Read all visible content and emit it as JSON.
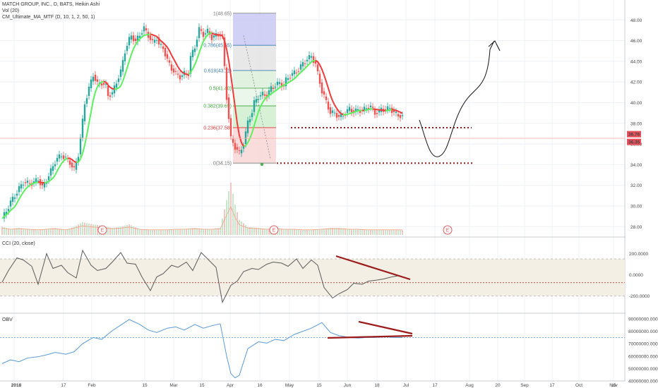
{
  "legend": {
    "symbol_line": "MATCH GROUP, INC., D, BATS, Heikin Ashi",
    "vol_line": "Vol (20)",
    "ma_line": "CM_Ultimate_MA_MTF (D, 10, 1, 2, 50, 1)"
  },
  "price_tags": {
    "upper": "36.76",
    "lower": "36.35"
  },
  "fib_labels": [
    "1(48.65)",
    "0.786(45.55)",
    "0.618(43.11)",
    "0.5(41.40)",
    "0.382(39.69)",
    "0.236(37.58)",
    "0(34.15)"
  ],
  "cci_title": "CCI (20, close)",
  "obv_title": "OBV",
  "earnings_marker": "E",
  "colors": {
    "up": "#26a69a",
    "down": "#ef5350",
    "ma_up": "#5cf05c",
    "ma_down": "#ef3b3b",
    "indicator": "#5a5a5a",
    "obv_line": "#5b9bd5",
    "annotation": "#9b1b1b",
    "tag": "#e8515b"
  },
  "chart_data": [
    {
      "type": "line",
      "title": "MATCH GROUP, INC., D, BATS, Heikin Ashi",
      "chart_style": "heikin-ashi candles with moving average and volume",
      "y_ticks": [
        "48.00",
        "46.00",
        "44.00",
        "42.00",
        "40.00",
        "38.00",
        "36.00",
        "34.00",
        "32.00",
        "30.00",
        "28.00"
      ],
      "ylim": [
        27.0,
        49.7
      ],
      "x_ticks": [
        "2018",
        "17",
        "Feb",
        "15",
        "Mar",
        "15",
        "Apr",
        "16",
        "May",
        "15",
        "Jun",
        "18",
        "Jul",
        "17",
        "Aug",
        "20",
        "Sep",
        "17",
        "Oct",
        "15",
        "Nov"
      ],
      "series": [
        {
          "x": [
            0,
            2,
            4,
            6,
            8,
            10,
            12,
            14,
            15,
            17,
            19,
            21,
            23,
            25,
            26,
            28,
            30,
            32,
            34,
            36,
            38,
            39,
            41,
            43,
            45,
            47,
            49,
            50,
            52,
            54,
            56,
            58,
            60,
            61,
            63,
            65,
            67,
            69,
            71,
            73,
            74,
            76,
            78,
            80,
            82,
            84,
            86,
            88,
            89,
            91,
            93,
            95,
            97,
            99,
            101,
            103,
            104,
            106,
            108,
            110,
            112,
            114,
            116,
            118,
            119,
            121,
            123,
            125,
            127,
            129,
            131,
            133,
            134,
            136,
            138,
            140,
            142,
            144,
            146,
            148,
            149,
            151,
            153,
            155,
            157,
            159,
            161,
            163,
            164,
            166,
            168,
            170,
            172,
            174,
            176,
            178,
            179,
            181,
            183,
            185,
            187,
            189
          ],
          "values": [
            28.8,
            29.5,
            30.4,
            31.0,
            31.7,
            32.3,
            32.2,
            32.2,
            32.3,
            32.6,
            31.8,
            32.5,
            33.4,
            34.3,
            34.6,
            34.9,
            34.6,
            34.2,
            33.5,
            35.0,
            38.2,
            39.9,
            41.4,
            42.7,
            41.8,
            41.9,
            41.6,
            40.7,
            40.9,
            42.0,
            43.0,
            45.0,
            46.1,
            46.5,
            45.9,
            46.6,
            47.2,
            46.5,
            45.8,
            46.3,
            45.6,
            45.3,
            44.1,
            43.3,
            42.8,
            42.5,
            42.8,
            42.8,
            44.4,
            45.4,
            47.1,
            46.6,
            46.9,
            46.3,
            46.5,
            46.6,
            46.3,
            40.5,
            36.5,
            35.7,
            35.1,
            36.0,
            38.1,
            39.1,
            40.0,
            40.6,
            40.8,
            40.7,
            41.4,
            41.7,
            41.9,
            41.6,
            42.2,
            42.6,
            42.9,
            43.2,
            43.8,
            44.2,
            44.5,
            43.7,
            42.8,
            41.1,
            40.1,
            39.0,
            39.0,
            38.6,
            38.8,
            39.2,
            39.4,
            39.1,
            39.3,
            39.2,
            39.5,
            39.6,
            39.0,
            39.1,
            39.4,
            39.3,
            39.5,
            39.0,
            38.8,
            38.6
          ]
        },
        {
          "name": "Vol (20)",
          "x": [
            0,
            4,
            8,
            12,
            17,
            21,
            25,
            30,
            34,
            38,
            43,
            47,
            52,
            56,
            60,
            65,
            69,
            73,
            78,
            82,
            86,
            91,
            95,
            99,
            103,
            106,
            108,
            110,
            112,
            116,
            121,
            125,
            129,
            133,
            138,
            142,
            146,
            151,
            155,
            159,
            164,
            168,
            172,
            176,
            181,
            185,
            189
          ],
          "values": [
            0.7,
            0.5,
            0.6,
            0.5,
            0.4,
            0.5,
            0.6,
            0.4,
            0.7,
            1.1,
            0.9,
            0.8,
            0.6,
            0.7,
            0.9,
            0.5,
            0.4,
            0.4,
            0.4,
            0.5,
            0.5,
            0.6,
            0.5,
            0.5,
            0.6,
            3.0,
            4.5,
            2.6,
            1.3,
            0.7,
            0.6,
            0.5,
            0.6,
            0.5,
            0.5,
            0.4,
            0.4,
            0.5,
            0.6,
            0.6,
            0.5,
            0.5,
            0.4,
            0.4,
            0.4,
            0.4,
            0.4
          ]
        }
      ],
      "fibonacci": {
        "levels": [
          1.0,
          0.786,
          0.618,
          0.5,
          0.382,
          0.236,
          0.0
        ],
        "prices": [
          48.65,
          45.55,
          43.11,
          41.4,
          39.69,
          37.58,
          34.15
        ]
      },
      "horizontal_lines": [
        37.58,
        34.15
      ],
      "last_price": [
        36.76,
        36.35
      ]
    },
    {
      "type": "line",
      "title": "CCI (20, close)",
      "y_ticks": [
        "200.0000",
        "0.0000",
        "-200.0000"
      ],
      "ylim": [
        -320,
        280
      ],
      "bands": [
        -200,
        150
      ],
      "series": [
        {
          "x": [
            0,
            3,
            7,
            10,
            14,
            17,
            21,
            24,
            28,
            31,
            35,
            38,
            42,
            45,
            49,
            52,
            56,
            59,
            63,
            66,
            70,
            73,
            76,
            80,
            83,
            87,
            90,
            94,
            97,
            101,
            104,
            108,
            111,
            114,
            118,
            121,
            125,
            128,
            132,
            135,
            139,
            142,
            146,
            149,
            152,
            156,
            159,
            163,
            166,
            170,
            173,
            177,
            180,
            184,
            187,
            189
          ],
          "values": [
            -70,
            40,
            160,
            140,
            80,
            -90,
            200,
            60,
            90,
            20,
            -30,
            230,
            90,
            40,
            60,
            120,
            210,
            110,
            100,
            -20,
            -150,
            -20,
            10,
            90,
            70,
            120,
            40,
            210,
            150,
            70,
            -260,
            -100,
            -60,
            30,
            60,
            50,
            100,
            120,
            110,
            80,
            150,
            60,
            140,
            90,
            -120,
            -220,
            -180,
            -140,
            -80,
            -90,
            -60,
            -50,
            -40,
            -20,
            -10,
            -20
          ]
        }
      ]
    },
    {
      "type": "line",
      "title": "OBV",
      "y_ticks": [
        "90000000.0000",
        "80000000.0000",
        "70000000.0000",
        "60000000.0000",
        "50000000.0000",
        "40000000.0000"
      ],
      "ylim": [
        39000000,
        92000000
      ],
      "series": [
        {
          "x": [
            0,
            4,
            8,
            12,
            17,
            21,
            25,
            30,
            34,
            38,
            43,
            47,
            52,
            56,
            60,
            65,
            69,
            73,
            78,
            82,
            86,
            91,
            95,
            99,
            103,
            106,
            108,
            110,
            112,
            116,
            121,
            125,
            129,
            133,
            138,
            142,
            146,
            151,
            155,
            159,
            164,
            168,
            172,
            176,
            181,
            185,
            189
          ],
          "values": [
            54000000,
            57000000,
            55500000,
            58500000,
            59500000,
            61000000,
            63000000,
            61500000,
            63500000,
            70000000,
            75000000,
            73500000,
            80500000,
            85000000,
            89500000,
            85500000,
            81000000,
            79000000,
            82500000,
            83500000,
            81000000,
            85500000,
            82500000,
            84500000,
            86000000,
            60000000,
            46000000,
            42500000,
            44500000,
            66000000,
            71500000,
            70500000,
            73500000,
            72500000,
            77500000,
            80000000,
            82500000,
            87000000,
            79000000,
            76500000,
            75000000,
            74500000,
            75000000,
            75000000,
            75500000,
            75000000,
            75000000
          ]
        }
      ],
      "reference_line": 75000000
    }
  ]
}
